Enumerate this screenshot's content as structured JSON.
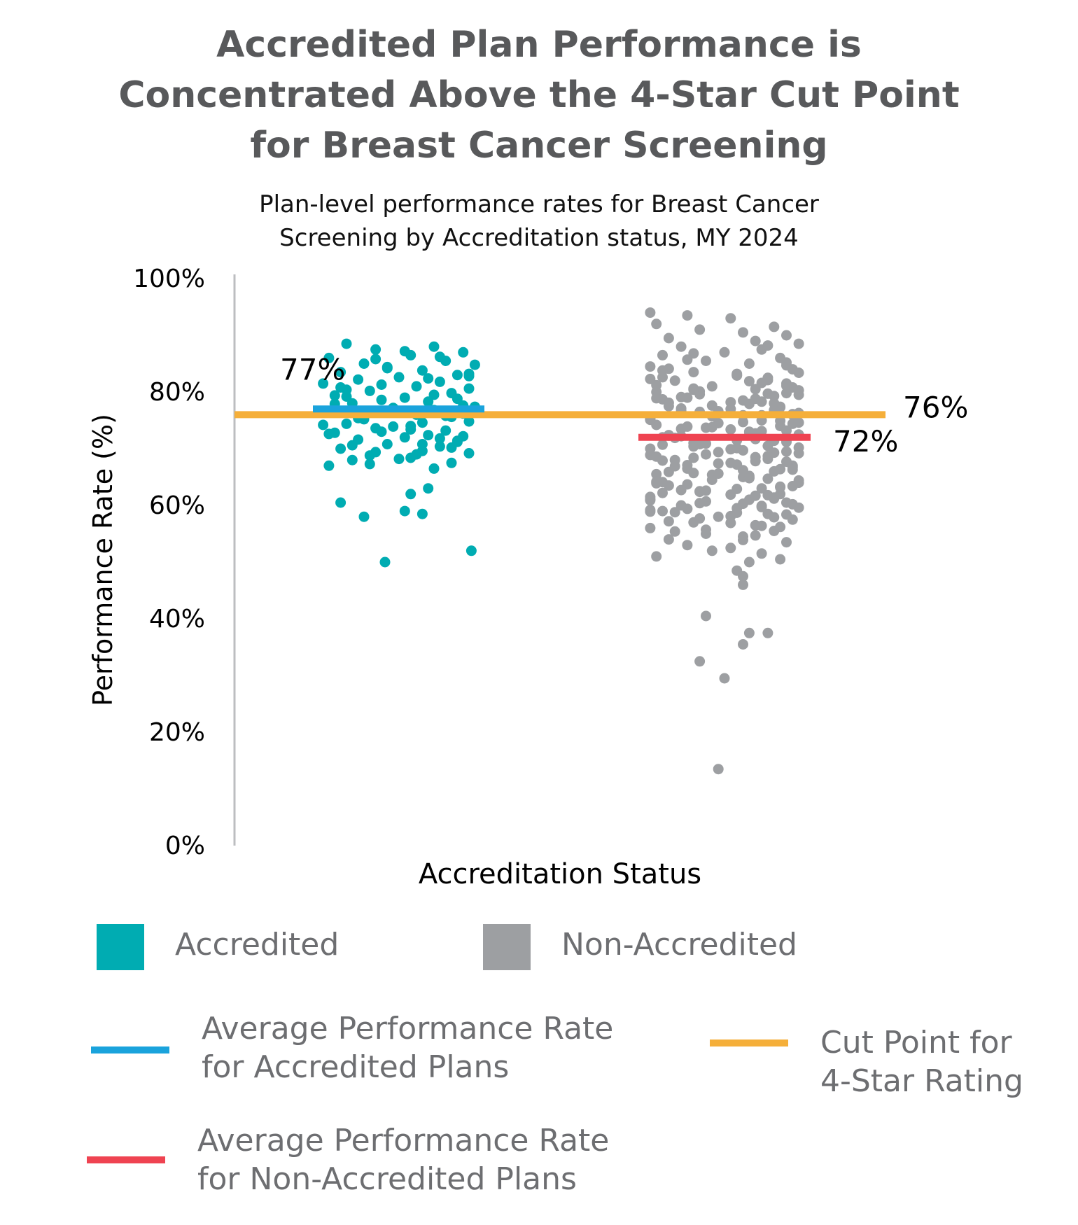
{
  "title_lines": [
    "Accredited Plan Performance is",
    "Concentrated Above the 4-Star Cut Point",
    "for Breast Cancer Screening"
  ],
  "subtitle_lines": [
    "Plan-level performance rates for Breast Cancer",
    "Screening by Accreditation status, MY 2024"
  ],
  "colors": {
    "accredited": "#00acb2",
    "non_accredited": "#9d9fa2",
    "avg_accredited_line": "#1aa3dc",
    "avg_non_accredited_line": "#ef4351",
    "cut_point_line": "#f5af3a",
    "title": "#58595b",
    "legend_text": "#6d6e71"
  },
  "legend": {
    "accredited": "Accredited",
    "non_accredited": "Non-Accredited",
    "avg_accredited": [
      "Average Performance Rate",
      "for Accredited Plans"
    ],
    "avg_non_accredited": [
      "Average Performance Rate",
      "for Non-Accredited Plans"
    ],
    "cut_point": [
      "Cut Point for",
      "4-Star Rating"
    ]
  },
  "chart_data": {
    "type": "scatter",
    "title": "Accredited Plan Performance is Concentrated Above the 4-Star Cut Point for Breast Cancer Screening",
    "subtitle": "Plan-level performance rates for Breast Cancer Screening by Accreditation status, MY 2024",
    "xlabel": "Accreditation Status",
    "ylabel": "Performance Rate (%)",
    "ylim": [
      0,
      100
    ],
    "yticks": [
      0,
      20,
      40,
      60,
      80,
      100
    ],
    "ytick_labels": [
      "0%",
      "20%",
      "40%",
      "60%",
      "80%",
      "100%"
    ],
    "categories": [
      "Accredited",
      "Non-Accredited"
    ],
    "reference_lines": [
      {
        "name": "Average Performance Rate for Accredited Plans",
        "value": 77,
        "label": "77%",
        "category": "Accredited"
      },
      {
        "name": "Average Performance Rate for Non-Accredited Plans",
        "value": 72,
        "label": "72%",
        "category": "Non-Accredited"
      },
      {
        "name": "Cut Point for 4-Star Rating",
        "value": 76,
        "label": "76%",
        "category": "all"
      }
    ],
    "series": [
      {
        "name": "Accredited",
        "values": [
          88.5,
          88,
          87.5,
          87,
          86.5,
          86,
          85.5,
          85,
          84.8,
          84.2,
          83.8,
          83.5,
          83,
          82.6,
          82.2,
          81.8,
          81.5,
          81,
          80.6,
          80.2,
          79.8,
          79.4,
          79,
          78.6,
          78.3,
          78,
          77.6,
          77.2,
          76.8,
          76.4,
          76,
          75.6,
          75.2,
          74.8,
          74.4,
          74,
          73.6,
          73.2,
          72.8,
          72.4,
          72,
          71.6,
          71.2,
          70.8,
          70.4,
          70,
          69.6,
          69.2,
          68.8,
          68.4,
          68,
          67.5,
          67,
          66.5,
          63,
          62,
          60.5,
          59,
          58.5,
          58,
          52,
          50,
          87.2,
          85.8,
          83.2,
          81.3,
          79.5,
          77.9,
          75.8,
          73.9,
          72.2,
          70.6,
          69,
          67.3,
          80.4,
          78.8,
          76.6,
          74.6,
          72.6,
          70.2,
          68.2,
          86.2,
          84.4,
          82.8,
          75.4,
          73.4,
          71.4,
          69.4,
          82.4,
          80.8,
          77.4,
          74.2,
          71.8,
          79.2,
          76.2,
          73,
          70.8
        ],
        "jitter": [
          -0.45,
          0.3,
          -0.2,
          0.55,
          0.1,
          -0.6,
          0.4,
          -0.3,
          0.65,
          -0.1,
          0.2,
          -0.5,
          0.5,
          0,
          -0.35,
          0.35,
          -0.65,
          0.15,
          0.6,
          -0.25,
          0.45,
          -0.55,
          0.05,
          -0.15,
          0.25,
          -0.4,
          0.55,
          -0.05,
          0.3,
          -0.6,
          0.15,
          0.45,
          -0.3,
          0.6,
          -0.45,
          0.1,
          -0.2,
          0.4,
          -0.55,
          0.25,
          0.05,
          -0.35,
          0.5,
          -0.1,
          0.35,
          -0.5,
          0.2,
          0.6,
          -0.25,
          0.1,
          -0.4,
          0.45,
          -0.6,
          0.3,
          0.25,
          0.1,
          -0.5,
          0.05,
          0.2,
          -0.3,
          0.62,
          -0.12,
          0.05,
          -0.2,
          0.6,
          -0.15,
          0.3,
          -0.55,
          0.4,
          -0.05,
          0.55,
          -0.4,
          0.15,
          -0.25,
          -0.45,
          0.5,
          -0.3,
          0.2,
          -0.6,
          0.45,
          0,
          0.35,
          -0.1,
          0.6,
          -0.35,
          0.1,
          0.5,
          -0.2,
          0.25,
          -0.5,
          0.65,
          -0.65,
          0.35,
          -0.45,
          0.55,
          -0.15,
          0.2
        ]
      },
      {
        "name": "Non-Accredited",
        "values": [
          94,
          93.5,
          93,
          92,
          91.5,
          91,
          90.5,
          90,
          89.5,
          89,
          88.5,
          88,
          87.5,
          87,
          86.5,
          86,
          85.5,
          85,
          84.5,
          84,
          83.5,
          83,
          82.5,
          82,
          81.5,
          81,
          80.5,
          80,
          79.5,
          79,
          78.5,
          78,
          77.5,
          77,
          76.5,
          76,
          75.5,
          75,
          74.5,
          74,
          73.5,
          73,
          72.5,
          72,
          71.5,
          71,
          70.5,
          70,
          69.5,
          69,
          68.5,
          68,
          67.5,
          67,
          66.5,
          66,
          65.5,
          65,
          64.5,
          64,
          63.5,
          63,
          62.5,
          62,
          61.5,
          61,
          60.5,
          60,
          59.5,
          59,
          58.5,
          58,
          57.5,
          57,
          56.5,
          56,
          55.5,
          55,
          54.5,
          54,
          53.5,
          53,
          52.5,
          52,
          51.5,
          51,
          50.5,
          50,
          48.5,
          47.5,
          46,
          40.5,
          37.5,
          37.5,
          35.5,
          32.5,
          29.5,
          13.5,
          88.2,
          86.8,
          85.2,
          84.1,
          83.2,
          82.3,
          81.6,
          80.8,
          80.1,
          79.3,
          78.7,
          77.9,
          77.1,
          76.3,
          75.7,
          74.9,
          74.2,
          73.4,
          72.7,
          71.9,
          71.2,
          70.4,
          69.7,
          68.9,
          68.2,
          67.4,
          66.7,
          65.9,
          65.2,
          64.4,
          63.7,
          62.9,
          62.2,
          61.4,
          60.7,
          59.9,
          59.2,
          58.4,
          57.7,
          56.9,
          56.2,
          55.4,
          54.7,
          53.9,
          85.7,
          84.7,
          83.8,
          82.9,
          82.1,
          81.2,
          80.3,
          79.6,
          78.8,
          78.1,
          77.3,
          76.6,
          75.9,
          75.1,
          74.4,
          73.7,
          72.9,
          72.2,
          71.4,
          70.7,
          69.9,
          69.2,
          68.4,
          67.7,
          66.9,
          66.2,
          65.4,
          64.7,
          63.9,
          63.2,
          62.4,
          61.7,
          60.9,
          60.2,
          59.4,
          58.7,
          57.9,
          57.2,
          56.4,
          55.7,
          83.4,
          82.6,
          81.9,
          81.1,
          80.4,
          79.7,
          78.9,
          78.2,
          77.4,
          76.7,
          75.9,
          75.2,
          74.6,
          73.8,
          73.1,
          72.3,
          71.6,
          70.8,
          70.1,
          69.3,
          68.6,
          67.8,
          67.1,
          66.3,
          65.6,
          64.8,
          64.1,
          63.3,
          62.6,
          61.8,
          61.1,
          60.3,
          59.6,
          58.8,
          58.1,
          80.6,
          79.8,
          79.1,
          78.3,
          77.6,
          76.8,
          76.1,
          75.3,
          74.7,
          73.9,
          73.2,
          72.4,
          71.7,
          70.9,
          70.2,
          69.4,
          68.7,
          67.9,
          67.2,
          66.4,
          65.7,
          64.9,
          64.2,
          63.4,
          62.7,
          61.9,
          61.2,
          60.4,
          59.7,
          58.9
        ],
        "jitter": [
          -0.6,
          -0.3,
          0.05,
          -0.55,
          0.4,
          -0.2,
          0.15,
          0.5,
          -0.45,
          0.25,
          0.6,
          -0.35,
          0.3,
          0,
          -0.5,
          0.45,
          -0.15,
          0.2,
          -0.6,
          0.55,
          -0.25,
          0.1,
          0.35,
          -0.4,
          0.5,
          -0.1,
          0.25,
          -0.55,
          0.6,
          -0.3,
          0.15,
          0.4,
          -0.45,
          0.05,
          -0.2,
          0.55,
          -0.6,
          0.3,
          -0.05,
          0.45,
          -0.35,
          0.2,
          0.6,
          -0.5,
          0.1,
          -0.25,
          0.35,
          -0.6,
          0.5,
          -0.15,
          0.25,
          -0.4,
          0.05,
          0.55,
          -0.3,
          0.4,
          -0.55,
          0.15,
          -0.1,
          0.6,
          -0.45,
          0.3,
          -0.2,
          0.45,
          -0.6,
          0.2,
          0.5,
          -0.35,
          0.1,
          -0.5,
          0.35,
          -0.05,
          0.55,
          -0.25,
          0.25,
          -0.6,
          0.4,
          -0.15,
          0.15,
          -0.45,
          0.5,
          -0.3,
          0.05,
          -0.1,
          0.3,
          -0.55,
          0.45,
          0.2,
          0.1,
          0.15,
          0.15,
          -0.15,
          0.2,
          0.35,
          0.15,
          -0.2,
          0,
          -0.05,
          0.35,
          -0.25,
          0.5,
          -0.45,
          0.1,
          -0.6,
          0.3,
          0.55,
          -0.2,
          0.4,
          -0.5,
          0.2,
          -0.35,
          0.6,
          -0.1,
          0.45,
          -0.55,
          0.05,
          0.25,
          -0.4,
          0.5,
          -0.25,
          0.15,
          -0.6,
          0.35,
          -0.05,
          0.55,
          -0.45,
          0.2,
          0.6,
          -0.3,
          0.1,
          -0.5,
          0.4,
          -0.15,
          0.3,
          -0.6,
          0.5,
          -0.2,
          0.05,
          0.45,
          -0.4,
          0.25,
          0.15,
          -0.3,
          0.5,
          -0.5,
          0.1,
          0.35,
          -0.55,
          0.6,
          -0.2,
          0.25,
          -0.45,
          0.45,
          -0.05,
          0.3,
          -0.6,
          0.55,
          -0.15,
          0.2,
          -0.35,
          0.4,
          -0.5,
          0.05,
          0.6,
          -0.25,
          0.5,
          -0.4,
          0.15,
          -0.1,
          0.35,
          -0.55,
          0.45,
          -0.2,
          0.25,
          -0.6,
          0.55,
          -0.3,
          0.1,
          0.4,
          -0.45,
          0.3,
          -0.15,
          0.6,
          -0.5,
          0.2,
          0.5,
          -0.25,
          0.35,
          -0.55,
          0.05,
          0.45,
          -0.35,
          0.15,
          -0.6,
          0.6,
          -0.1,
          0.3,
          -0.45,
          0.5,
          -0.2,
          0.1,
          0.4,
          -0.55,
          0.25,
          -0.3,
          0.55,
          -0.05,
          0.2,
          -0.5,
          0.45,
          -0.15,
          0.35,
          -0.6,
          0.15,
          0.6,
          -0.4,
          0.05,
          -0.25,
          0.5,
          -0.35,
          0.3,
          -0.1,
          0.4,
          0.55,
          -0.6,
          0.15,
          -0.3,
          0.5,
          -0.45,
          0.25,
          -0.15,
          0.6,
          -0.05,
          0.35,
          -0.5,
          0.1,
          0.45,
          -0.25,
          0.2,
          -0.55,
          0.55,
          -0.35,
          0.05,
          0.4,
          -0.2,
          0.3,
          -0.6,
          0.5,
          -0.4,
          0.15,
          0.6,
          -0.1,
          0.25,
          -0.5,
          0.45,
          -0.3,
          0.1
        ]
      }
    ]
  }
}
